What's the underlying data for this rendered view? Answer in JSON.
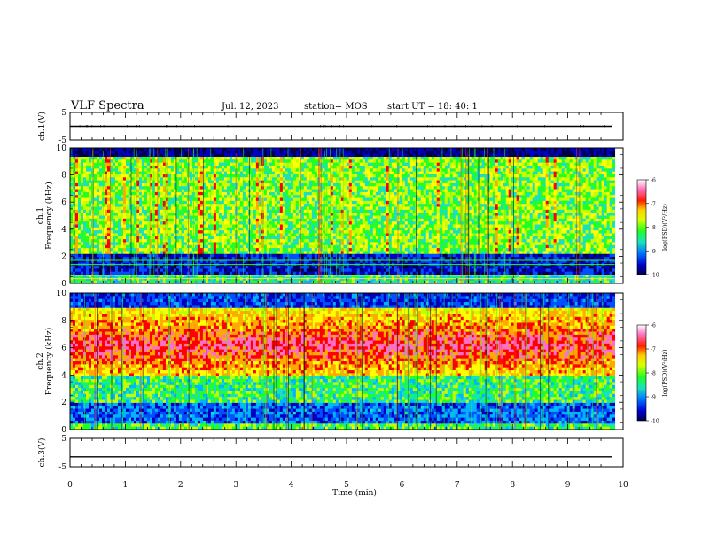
{
  "header": {
    "title": "VLF Spectra",
    "date": "Jul. 12, 2023",
    "station": "station= MOS",
    "start": "start UT = 18: 40: 1"
  },
  "chart_data": [
    {
      "type": "line",
      "panel": "ch1-voltage",
      "ylabel": "ch.1(V)",
      "ylim": [
        -5,
        5
      ],
      "yticks": [
        "5",
        "-5"
      ],
      "series": [
        {
          "x": [
            0,
            9.8
          ],
          "y": [
            0,
            0
          ],
          "color": "#000000"
        }
      ]
    },
    {
      "type": "heatmap",
      "panel": "ch1-spectrogram",
      "ylabel": "ch.1\nFrequency (kHz)",
      "ylim": [
        0,
        10
      ],
      "yticks": [
        "0",
        "2",
        "4",
        "6",
        "8",
        "10"
      ],
      "xlim": [
        0,
        10
      ],
      "data_extent_min": 9.85,
      "colorbar": {
        "label": "log(PSD)(V²/Hz)",
        "range": [
          -10,
          -6
        ],
        "ticks": [
          "-6",
          "-7",
          "-8",
          "-9",
          "-10"
        ]
      },
      "horizontal_lines_khz": [
        1.7,
        1.4,
        0.6,
        0.35
      ]
    },
    {
      "type": "heatmap",
      "panel": "ch2-spectrogram",
      "ylabel": "ch.2\nFrequency (kHz)",
      "ylim": [
        0,
        10
      ],
      "yticks": [
        "0",
        "2",
        "4",
        "6",
        "8",
        "10"
      ],
      "xlim": [
        0,
        10
      ],
      "data_extent_min": 9.85,
      "colorbar": {
        "label": "log(PSD)(V²/Hz)",
        "range": [
          -10,
          -6
        ],
        "ticks": [
          "-6",
          "-7",
          "-8",
          "-9",
          "-10"
        ]
      }
    },
    {
      "type": "line",
      "panel": "ch3-voltage",
      "ylabel": "ch.3(V)",
      "ylim": [
        -5,
        5
      ],
      "yticks": [
        "5",
        "-5"
      ],
      "xlabel": "Time (min)",
      "xlim": [
        0,
        10
      ],
      "xticks": [
        "0",
        "1",
        "2",
        "3",
        "4",
        "5",
        "6",
        "7",
        "8",
        "9",
        "10"
      ],
      "series": [
        {
          "x": [
            0,
            9.8
          ],
          "y": [
            -1.5,
            -1.5
          ],
          "color": "#000000"
        }
      ]
    }
  ],
  "colormap": [
    "#00004a",
    "#0000c0",
    "#0050ff",
    "#00b4ff",
    "#19e0c0",
    "#22ff22",
    "#c4ff00",
    "#ffff00",
    "#ffaa00",
    "#ff0000",
    "#ff6ec8",
    "#ffffff"
  ]
}
